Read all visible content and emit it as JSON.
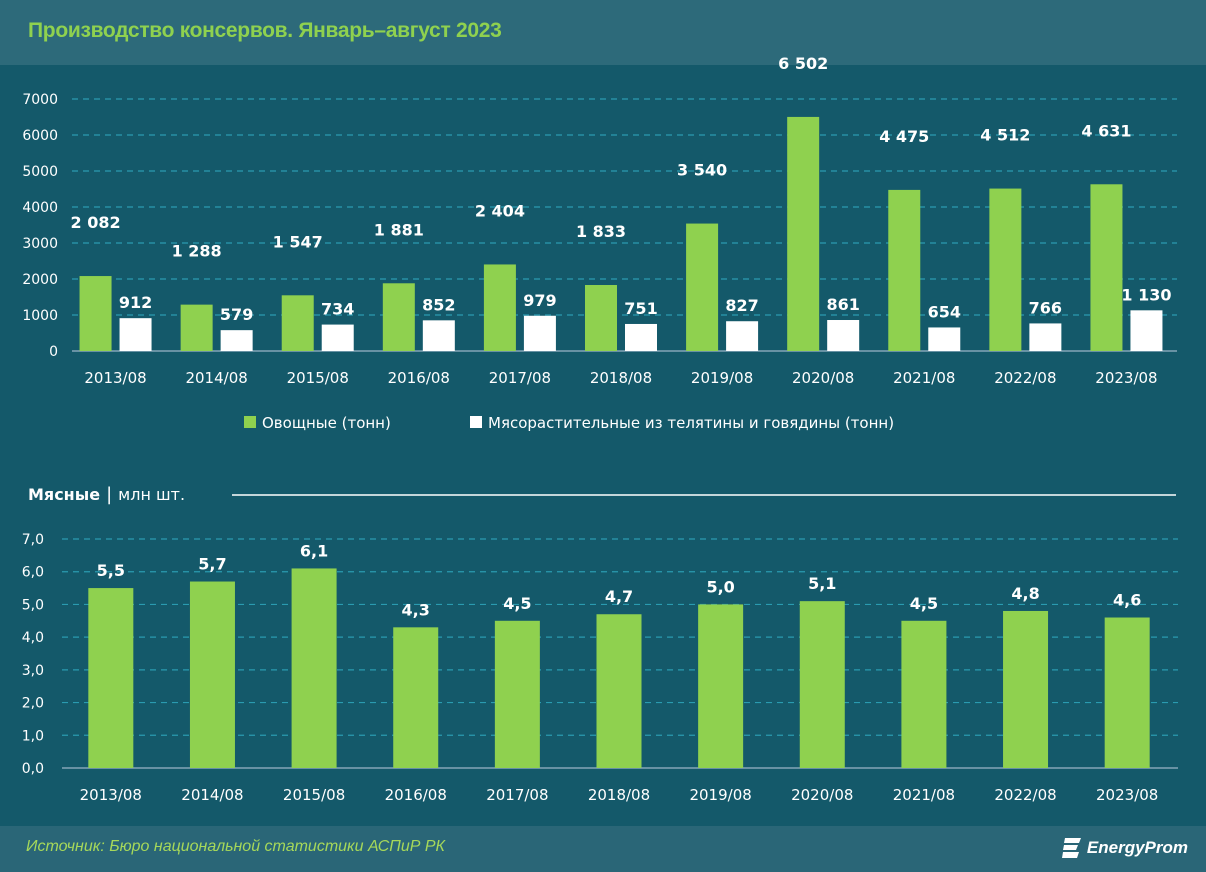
{
  "title": "Производство консервов. Январь–август 2023",
  "source": "Источник: Бюро национальной статистики АСПиР РК",
  "logo_text": "EnergyProm",
  "colors": {
    "green": "#8fd14f",
    "white": "#ffffff",
    "background": "#14596a",
    "grid": "#2a9bb0"
  },
  "chart_data": [
    {
      "type": "bar",
      "categories": [
        "2013/08",
        "2014/08",
        "2015/08",
        "2016/08",
        "2017/08",
        "2018/08",
        "2019/08",
        "2020/08",
        "2021/08",
        "2022/08",
        "2023/08"
      ],
      "series": [
        {
          "name": "Овощные (тонн)",
          "color": "#8fd14f",
          "values": [
            2082,
            1288,
            1547,
            1881,
            2404,
            1833,
            3540,
            6502,
            4475,
            4512,
            4631
          ],
          "labels": [
            "2 082",
            "1 288",
            "1 547",
            "1 881",
            "2 404",
            "1 833",
            "3 540",
            "6 502",
            "4 475",
            "4 512",
            "4 631"
          ]
        },
        {
          "name": "Мясорастительные из телятины и говядины (тонн)",
          "color": "#ffffff",
          "values": [
            912,
            579,
            734,
            852,
            979,
            751,
            827,
            861,
            654,
            766,
            1130
          ],
          "labels": [
            "912",
            "579",
            "734",
            "852",
            "979",
            "751",
            "827",
            "861",
            "654",
            "766",
            "1 130"
          ]
        }
      ],
      "yticks": [
        "0",
        "1000",
        "2000",
        "3000",
        "4000",
        "5000",
        "6000",
        "7000"
      ],
      "ylim": [
        0,
        7000
      ],
      "grid": true,
      "legend": "bottom"
    },
    {
      "type": "bar",
      "title": "Мясные",
      "unit": "млн шт.",
      "categories": [
        "2013/08",
        "2014/08",
        "2015/08",
        "2016/08",
        "2017/08",
        "2018/08",
        "2019/08",
        "2020/08",
        "2021/08",
        "2022/08",
        "2023/08"
      ],
      "series": [
        {
          "color": "#8fd14f",
          "values": [
            5.5,
            5.7,
            6.1,
            4.3,
            4.5,
            4.7,
            5.0,
            5.1,
            4.5,
            4.8,
            4.6
          ],
          "labels": [
            "5,5",
            "5,7",
            "6,1",
            "4,3",
            "4,5",
            "4,7",
            "5,0",
            "5,1",
            "4,5",
            "4,8",
            "4,6"
          ]
        }
      ],
      "yticks": [
        "0,0",
        "1,0",
        "2,0",
        "3,0",
        "4,0",
        "5,0",
        "6,0",
        "7,0"
      ],
      "ylim": [
        0,
        7
      ],
      "grid": true
    }
  ]
}
